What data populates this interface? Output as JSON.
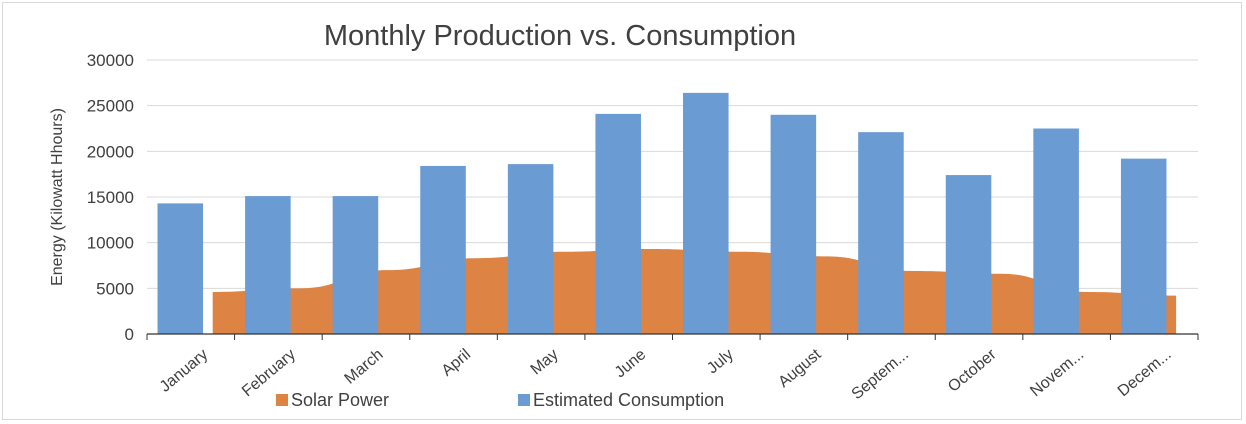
{
  "chart_data": {
    "type": "bar",
    "title": "Monthly Production vs. Consumption",
    "xlabel": "",
    "ylabel": "Energy (Kilowatt Hhours)",
    "ylim": [
      0,
      30000
    ],
    "yticks": [
      0,
      5000,
      10000,
      15000,
      20000,
      25000,
      30000
    ],
    "grid": true,
    "legend_position": "bottom",
    "categories": [
      "January",
      "February",
      "March",
      "April",
      "May",
      "June",
      "July",
      "August",
      "Septem...",
      "October",
      "Novem...",
      "Decem..."
    ],
    "series": [
      {
        "name": "Solar Power",
        "type": "area",
        "color": "#dd8444",
        "values": [
          4600,
          5000,
          7000,
          8300,
          9000,
          9300,
          9000,
          8500,
          6900,
          6600,
          4600,
          4200
        ]
      },
      {
        "name": "Estimated Consumption",
        "type": "bar",
        "color": "#6a9bd3",
        "values": [
          14300,
          15100,
          15100,
          18400,
          18600,
          24100,
          26400,
          24000,
          22100,
          17400,
          22500,
          19200
        ]
      }
    ]
  }
}
